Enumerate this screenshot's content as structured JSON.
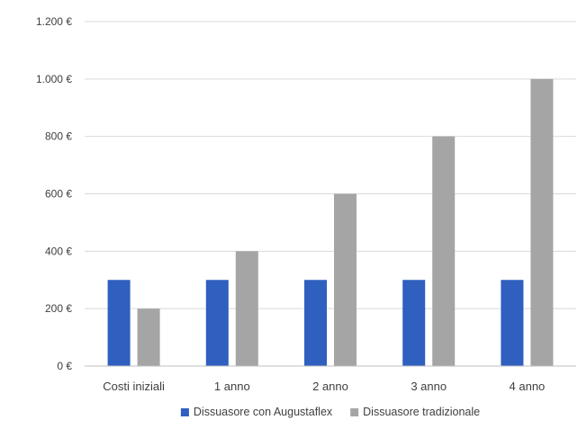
{
  "chart_data": {
    "type": "bar",
    "categories": [
      "Costi iniziali",
      "1 anno",
      "2 anno",
      "3 anno",
      "4 anno"
    ],
    "series": [
      {
        "name": "Dissuasore con Augustaflex",
        "color": "#2f5fbf",
        "values": [
          300,
          300,
          300,
          300,
          300
        ]
      },
      {
        "name": "Dissuasore tradizionale",
        "color": "#a5a5a5",
        "values": [
          200,
          400,
          600,
          800,
          1000
        ]
      }
    ],
    "yticks": [
      {
        "value": 0,
        "label": "0 €"
      },
      {
        "value": 200,
        "label": "200 €"
      },
      {
        "value": 400,
        "label": "400 €"
      },
      {
        "value": 600,
        "label": "600 €"
      },
      {
        "value": 800,
        "label": "800 €"
      },
      {
        "value": 1000,
        "label": "1.000 €"
      },
      {
        "value": 1200,
        "label": "1.200 €"
      }
    ],
    "ylim": [
      0,
      1200
    ],
    "grid": true,
    "legend_position": "bottom",
    "title": "",
    "xlabel": "",
    "ylabel": ""
  }
}
